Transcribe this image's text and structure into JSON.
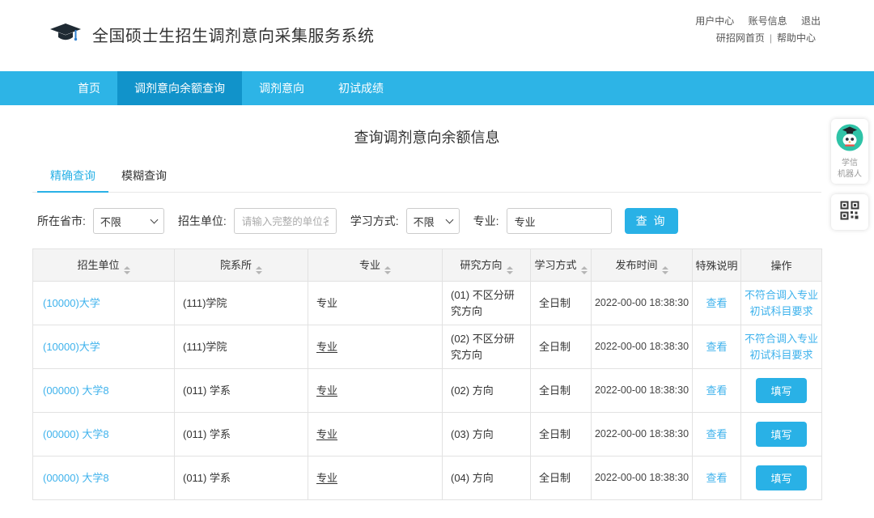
{
  "header": {
    "title": "全国硕士生招生调剂意向采集服务系统",
    "logo_icon": "graduation-cap-icon",
    "top_links": [
      "用户中心",
      "账号信息",
      "退出"
    ],
    "secondary_links": [
      "研招网首页",
      "帮助中心"
    ],
    "secondary_separator": "|"
  },
  "navbar": {
    "items": [
      {
        "label": "首页",
        "active": false
      },
      {
        "label": "调剂意向余额查询",
        "active": true
      },
      {
        "label": "调剂意向",
        "active": false
      },
      {
        "label": "初试成绩",
        "active": false
      }
    ]
  },
  "page": {
    "title": "查询调剂意向余额信息"
  },
  "tabs": [
    {
      "label": "精确查询",
      "active": true
    },
    {
      "label": "模糊查询",
      "active": false
    }
  ],
  "filters": {
    "province_label": "所在省市:",
    "province_value": "不限",
    "unit_label": "招生单位:",
    "unit_placeholder": "请输入完整的单位名称",
    "study_mode_label": "学习方式:",
    "study_mode_value": "不限",
    "major_label": "专业:",
    "major_value": "专业",
    "search_button": "查 询"
  },
  "table": {
    "columns": [
      {
        "id": "unit",
        "label": "招生单位",
        "sortable": true
      },
      {
        "id": "department",
        "label": "院系所",
        "sortable": true
      },
      {
        "id": "major",
        "label": "专业",
        "sortable": true
      },
      {
        "id": "direction",
        "label": "研究方向",
        "sortable": true
      },
      {
        "id": "study-mode",
        "label": "学习方式",
        "sortable": true
      },
      {
        "id": "publish-time",
        "label": "发布时间",
        "sortable": true
      },
      {
        "id": "special-note",
        "label": "特殊说明",
        "sortable": false
      },
      {
        "id": "actions",
        "label": "操作",
        "sortable": false
      }
    ],
    "view_label": "查看",
    "fill_label": "填写",
    "rows": [
      {
        "unit": "(10000)大学",
        "department": "(111)学院",
        "major": "专业",
        "major_underlined": false,
        "direction": "(01) 不区分研究方向",
        "study_mode": "全日制",
        "publish_time": "2022-00-00 18:38:30",
        "action": "note",
        "action_note": "不符合调入专业初试科目要求"
      },
      {
        "unit": "(10000)大学",
        "department": "(111)学院",
        "major": "专业",
        "major_underlined": true,
        "direction": "(02) 不区分研究方向",
        "study_mode": "全日制",
        "publish_time": "2022-00-00 18:38:30",
        "action": "note",
        "action_note": "不符合调入专业初试科目要求"
      },
      {
        "unit": "(00000) 大学8",
        "department": "(011) 学系",
        "major": "专业",
        "major_underlined": true,
        "direction": "(02) 方向",
        "study_mode": "全日制",
        "publish_time": "2022-00-00 18:38:30",
        "action": "fill"
      },
      {
        "unit": "(00000) 大学8",
        "department": "(011) 学系",
        "major": "专业",
        "major_underlined": true,
        "direction": "(03) 方向",
        "study_mode": "全日制",
        "publish_time": "2022-00-00 18:38:30",
        "action": "fill"
      },
      {
        "unit": "(00000) 大学8",
        "department": "(011) 学系",
        "major": "专业",
        "major_underlined": true,
        "direction": "(04) 方向",
        "study_mode": "全日制",
        "publish_time": "2022-00-00 18:38:30",
        "action": "fill"
      }
    ]
  },
  "floating": {
    "robot_icon": "xuexin-robot-icon",
    "robot_label_line1": "学信",
    "robot_label_line2": "机器人",
    "qr_icon": "qr-code-icon"
  },
  "colors": {
    "navbar": "#2db4e6",
    "navbar_active": "#1193ca",
    "accent": "#29b1e6",
    "link": "#3eb2ec"
  }
}
